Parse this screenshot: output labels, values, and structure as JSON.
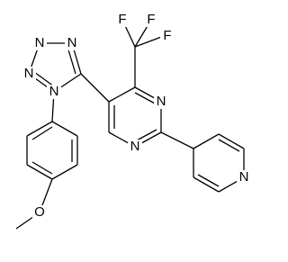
{
  "atoms": [
    {
      "label": "N"
    },
    {
      "label": "N"
    },
    {
      "label": "N"
    },
    {
      "label": "N"
    },
    {
      "label": "F"
    },
    {
      "label": "F"
    },
    {
      "label": "F"
    },
    {
      "label": "N"
    },
    {
      "label": "N"
    },
    {
      "label": "N"
    },
    {
      "label": "O"
    }
  ]
}
